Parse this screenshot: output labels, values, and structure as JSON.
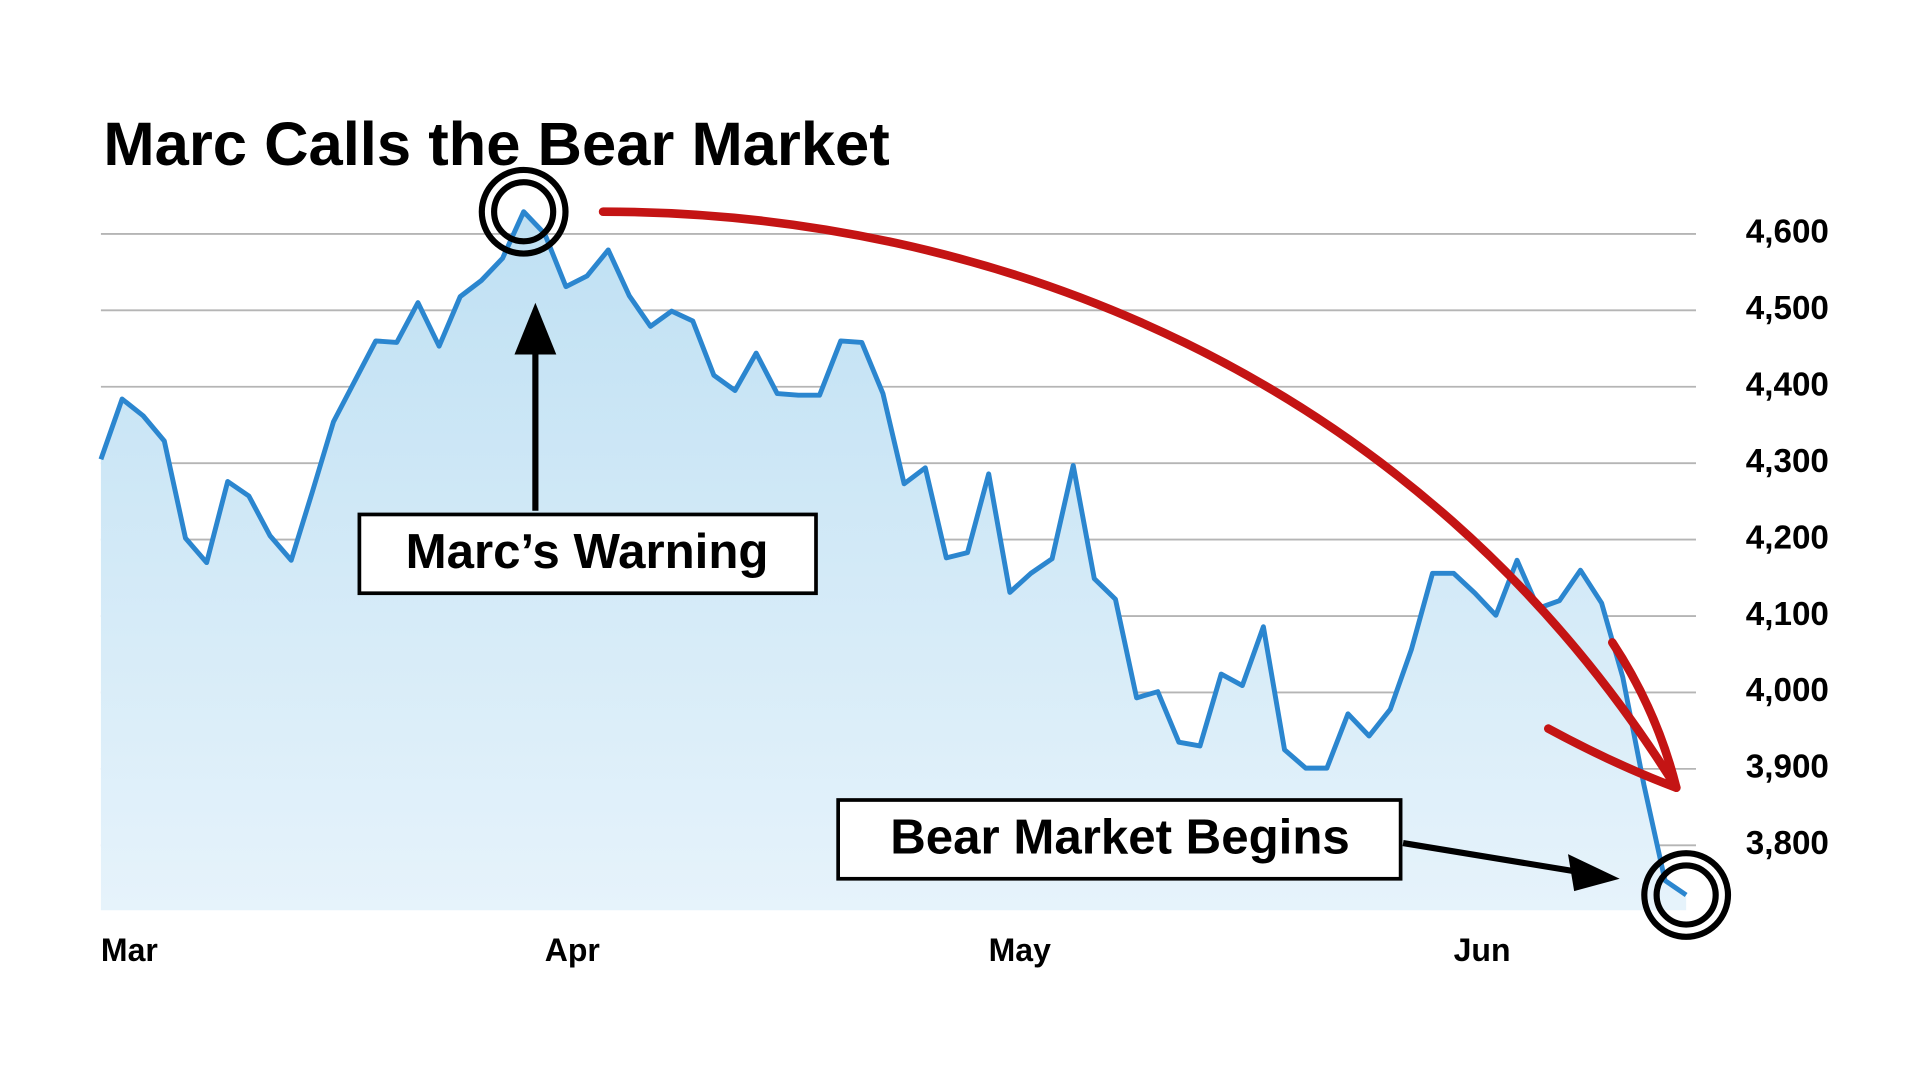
{
  "chart_data": {
    "type": "area",
    "title": "Marc Calls the Bear Market",
    "categories": [
      "Mar",
      null,
      null,
      null,
      null,
      null,
      null,
      null,
      null,
      null,
      null,
      null,
      null,
      null,
      null,
      null,
      null,
      null,
      null,
      null,
      null,
      "Apr",
      null,
      null,
      null,
      null,
      null,
      null,
      null,
      null,
      null,
      null,
      null,
      null,
      null,
      null,
      null,
      null,
      null,
      null,
      null,
      null,
      "May",
      null,
      null,
      null,
      null,
      null,
      null,
      null,
      null,
      null,
      null,
      null,
      null,
      null,
      null,
      null,
      null,
      null,
      null,
      null,
      null,
      null,
      "Jun",
      null,
      null,
      null,
      null,
      null,
      null,
      null,
      null,
      null,
      null,
      null
    ],
    "values": [
      4305,
      4384,
      4362,
      4329,
      4202,
      4170,
      4276,
      4257,
      4205,
      4173,
      4262,
      4354,
      4407,
      4460,
      4458,
      4510,
      4453,
      4518,
      4539,
      4568,
      4629,
      4600,
      4531,
      4545,
      4579,
      4519,
      4479,
      4499,
      4486,
      4415,
      4395,
      4444,
      4391,
      4389,
      4389,
      4460,
      4458,
      4391,
      4273,
      4294,
      4176,
      4183,
      4286,
      4131,
      4156,
      4175,
      4297,
      4149,
      4122,
      3993,
      4001,
      3935,
      3930,
      4024,
      4009,
      4086,
      3925,
      3901,
      3901,
      3972,
      3943,
      3978,
      4056,
      4156,
      4156,
      4130,
      4101,
      4173,
      4110,
      4120,
      4160,
      4117,
      4020,
      3879,
      3754,
      3735
    ],
    "color": "#2b86cf",
    "ylim": [
      3715,
      4650
    ],
    "yticks": [
      {
        "value": 3800,
        "label": "3,800"
      },
      {
        "value": 3900,
        "label": "3,900"
      },
      {
        "value": 4000,
        "label": "4,000"
      },
      {
        "value": 4100,
        "label": "4,100"
      },
      {
        "value": 4200,
        "label": "4,200"
      },
      {
        "value": 4300,
        "label": "4,300"
      },
      {
        "value": 4400,
        "label": "4,400"
      },
      {
        "value": 4500,
        "label": "4,500"
      },
      {
        "value": 4600,
        "label": "4,600"
      }
    ],
    "grid": true,
    "annotations": [
      "Marc’s Warning",
      "Bear Market Begins"
    ]
  }
}
